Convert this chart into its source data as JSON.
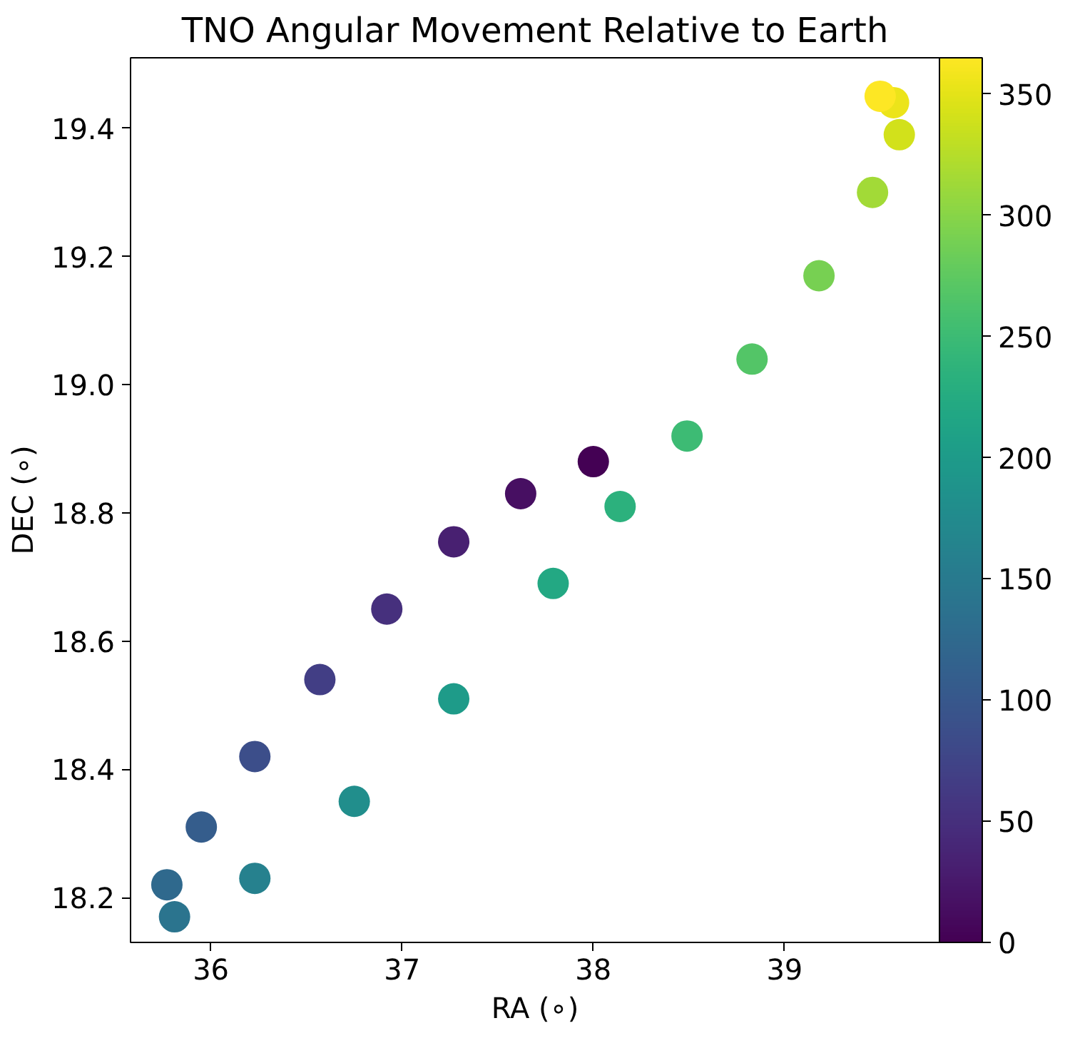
{
  "chart_data": {
    "type": "scatter",
    "title": "TNO Angular Movement Relative to Earth",
    "xlabel": "RA (∘)",
    "ylabel": "DEC (∘)",
    "x": [
      38.0,
      37.62,
      37.27,
      36.92,
      36.57,
      36.23,
      35.95,
      35.77,
      35.81,
      36.23,
      36.75,
      37.27,
      37.79,
      38.14,
      38.49,
      38.83,
      39.18,
      39.46,
      39.6,
      39.57,
      39.5
    ],
    "values": [
      18.88,
      18.83,
      18.755,
      18.65,
      18.54,
      18.42,
      18.31,
      18.22,
      18.17,
      18.23,
      18.35,
      18.51,
      18.69,
      18.81,
      18.92,
      19.04,
      19.17,
      19.3,
      19.39,
      19.44,
      19.45
    ],
    "cvalues": [
      0,
      15,
      32,
      50,
      68,
      88,
      108,
      125,
      140,
      160,
      180,
      200,
      220,
      235,
      250,
      268,
      290,
      315,
      340,
      355,
      365
    ],
    "clim": [
      0,
      365
    ],
    "cticks": [
      0,
      50,
      100,
      150,
      200,
      250,
      300,
      350
    ],
    "xlim": [
      35.58,
      39.81
    ],
    "ylim": [
      18.13,
      19.51
    ],
    "xticks": [
      36,
      37,
      38,
      39
    ],
    "yticks": [
      18.2,
      18.4,
      18.6,
      18.8,
      {
        "value": 19.0,
        "label": "19.0"
      },
      19.2,
      19.4
    ],
    "grid": false,
    "marker": "circle"
  }
}
